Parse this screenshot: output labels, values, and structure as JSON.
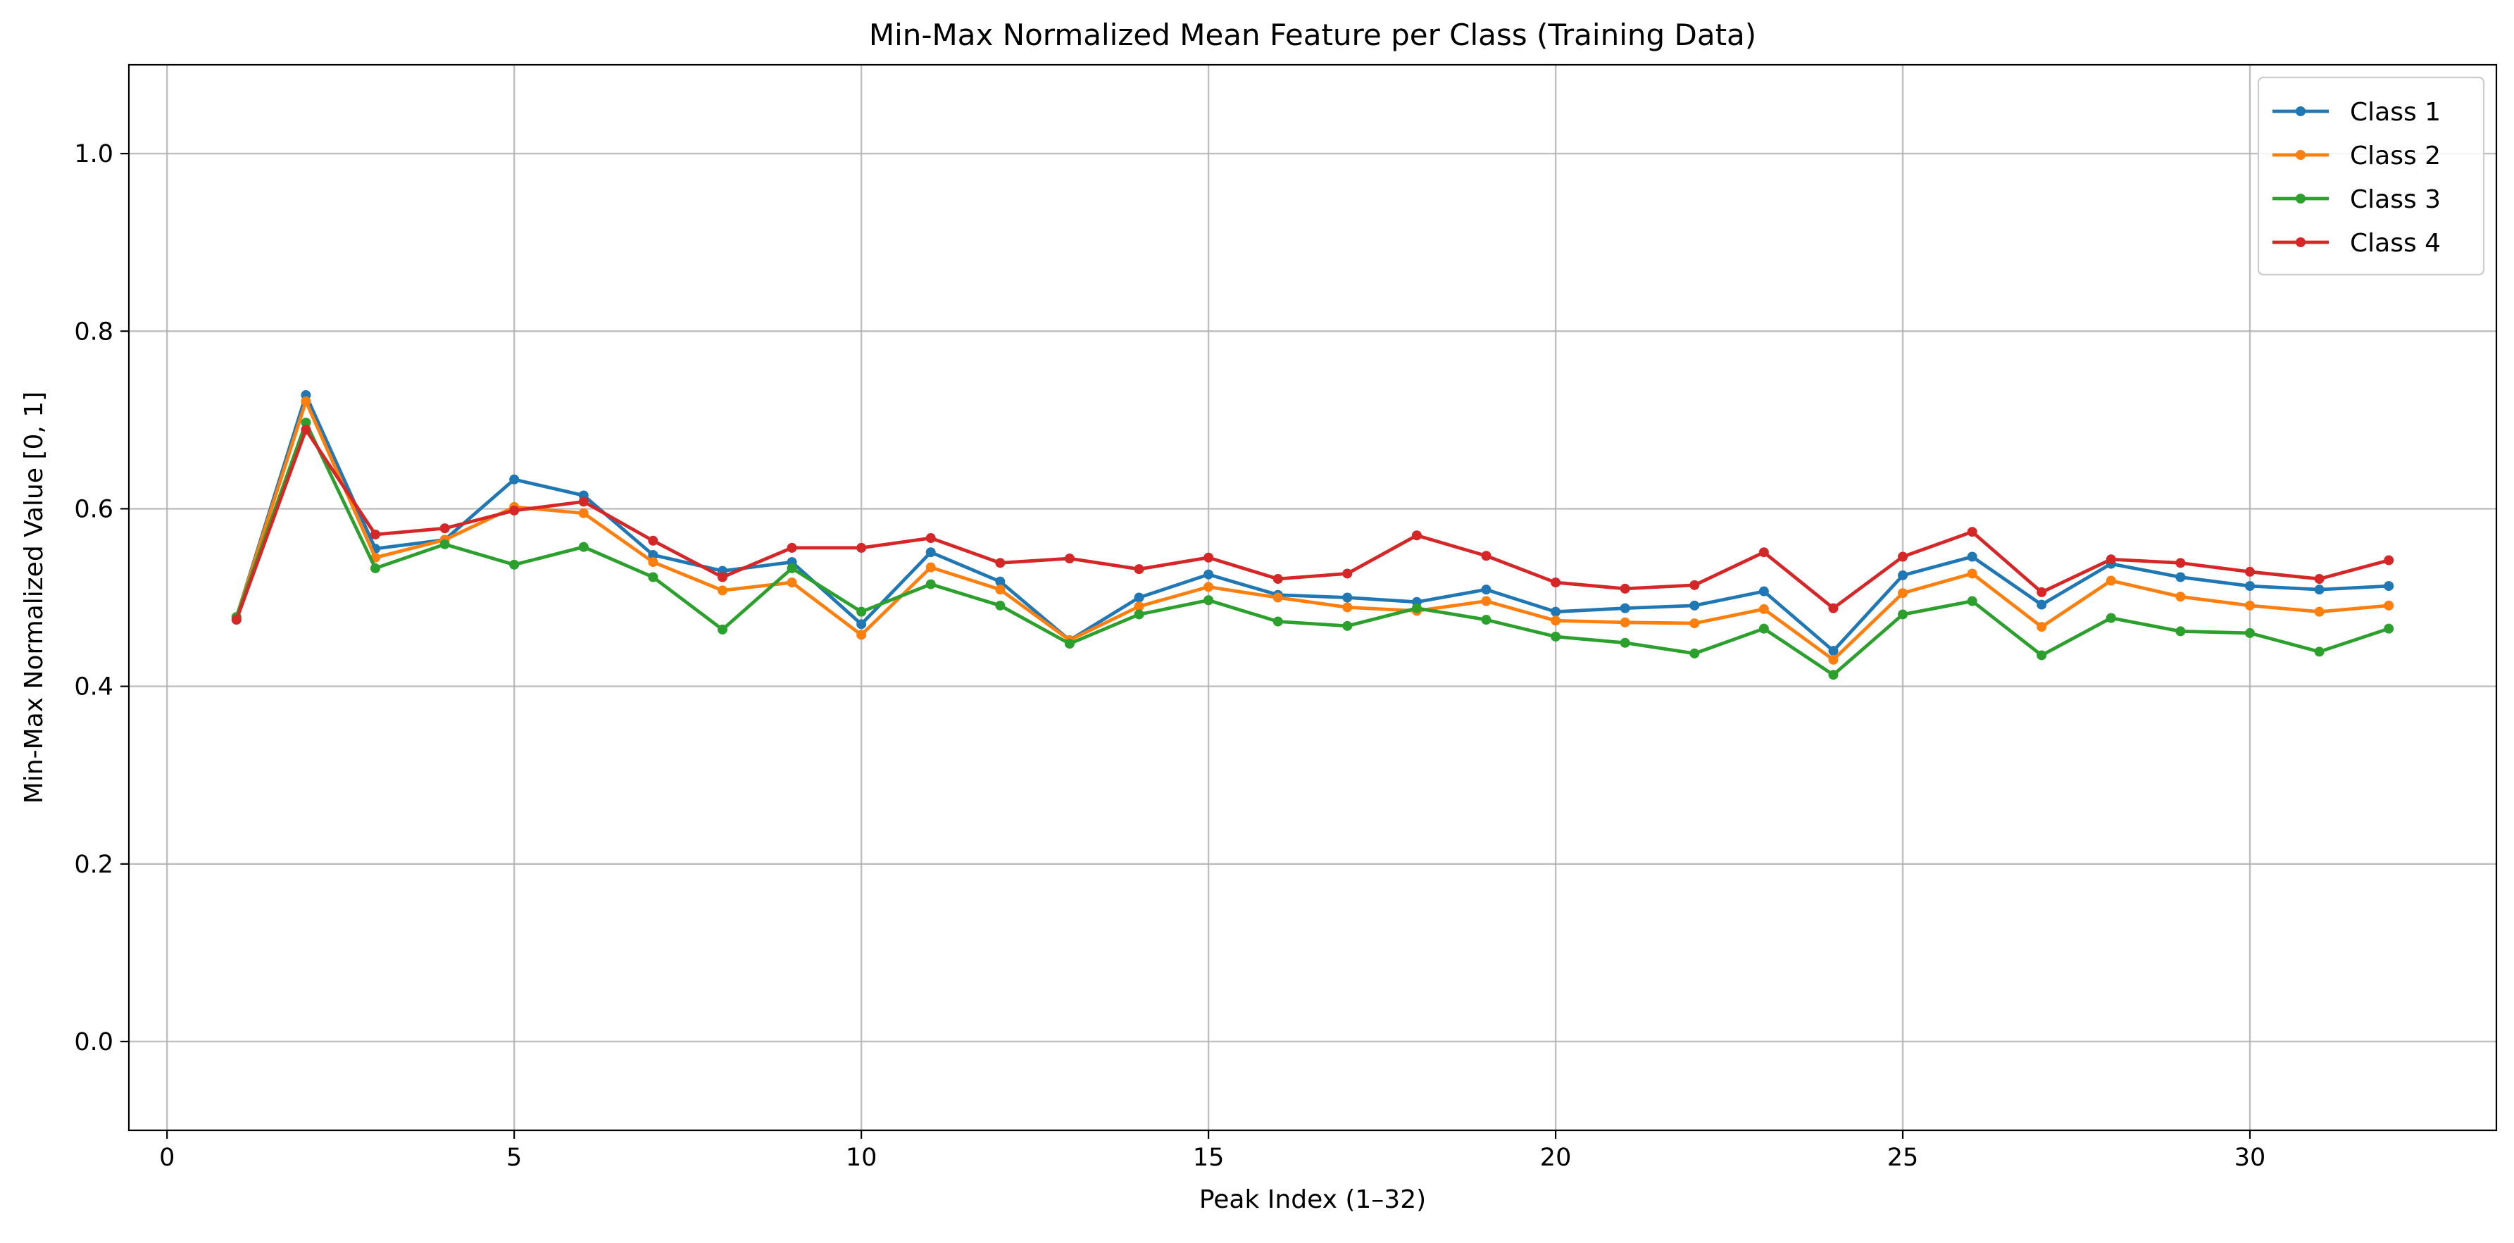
{
  "chart_data": {
    "type": "line",
    "title": "Min-Max Normalized Mean Feature per Class (Training Data)",
    "xlabel": "Peak Index (1–32)",
    "ylabel": "Min-Max Normalized Value [0, 1]",
    "xlim": [
      -0.55,
      33.55
    ],
    "ylim": [
      -0.1,
      1.1
    ],
    "xticks": [
      0,
      5,
      10,
      15,
      20,
      25,
      30
    ],
    "xtick_labels": [
      "0",
      "5",
      "10",
      "15",
      "20",
      "25",
      "30"
    ],
    "yticks": [
      0.0,
      0.2,
      0.4,
      0.6,
      0.8,
      1.0
    ],
    "ytick_labels": [
      "0.0",
      "0.2",
      "0.4",
      "0.6",
      "0.8",
      "1.0"
    ],
    "grid": true,
    "legend_position": "top-right",
    "markers": true,
    "x": [
      1,
      2,
      3,
      4,
      5,
      6,
      7,
      8,
      9,
      10,
      11,
      12,
      13,
      14,
      15,
      16,
      17,
      18,
      19,
      20,
      21,
      22,
      23,
      24,
      25,
      26,
      27,
      28,
      29,
      30,
      31,
      32
    ],
    "series": [
      {
        "name": "Class 1",
        "color": "#1f77b4",
        "values": [
          0.478,
          0.728,
          0.555,
          0.565,
          0.633,
          0.615,
          0.548,
          0.53,
          0.54,
          0.47,
          0.551,
          0.518,
          0.452,
          0.5,
          0.526,
          0.503,
          0.5,
          0.495,
          0.509,
          0.484,
          0.488,
          0.491,
          0.507,
          0.44,
          0.525,
          0.546,
          0.492,
          0.538,
          0.523,
          0.513,
          0.509,
          0.513
        ]
      },
      {
        "name": "Class 2",
        "color": "#ff7f0e",
        "values": [
          0.478,
          0.721,
          0.545,
          0.565,
          0.602,
          0.595,
          0.54,
          0.508,
          0.517,
          0.458,
          0.534,
          0.509,
          0.452,
          0.49,
          0.512,
          0.5,
          0.489,
          0.485,
          0.496,
          0.474,
          0.472,
          0.471,
          0.487,
          0.43,
          0.505,
          0.527,
          0.467,
          0.519,
          0.501,
          0.491,
          0.484,
          0.491
        ]
      },
      {
        "name": "Class 3",
        "color": "#2ca02c",
        "values": [
          0.478,
          0.697,
          0.533,
          0.56,
          0.537,
          0.557,
          0.523,
          0.464,
          0.533,
          0.484,
          0.515,
          0.491,
          0.448,
          0.481,
          0.497,
          0.473,
          0.468,
          0.488,
          0.475,
          0.456,
          0.449,
          0.437,
          0.465,
          0.413,
          0.481,
          0.496,
          0.435,
          0.477,
          0.462,
          0.46,
          0.439,
          0.465
        ]
      },
      {
        "name": "Class 4",
        "color": "#d62728",
        "values": [
          0.475,
          0.689,
          0.571,
          0.578,
          0.598,
          0.608,
          0.564,
          0.523,
          0.556,
          0.556,
          0.567,
          0.539,
          0.544,
          0.532,
          0.545,
          0.521,
          0.527,
          0.57,
          0.547,
          0.517,
          0.51,
          0.514,
          0.551,
          0.488,
          0.546,
          0.574,
          0.506,
          0.543,
          0.539,
          0.529,
          0.521,
          0.542
        ]
      }
    ]
  }
}
